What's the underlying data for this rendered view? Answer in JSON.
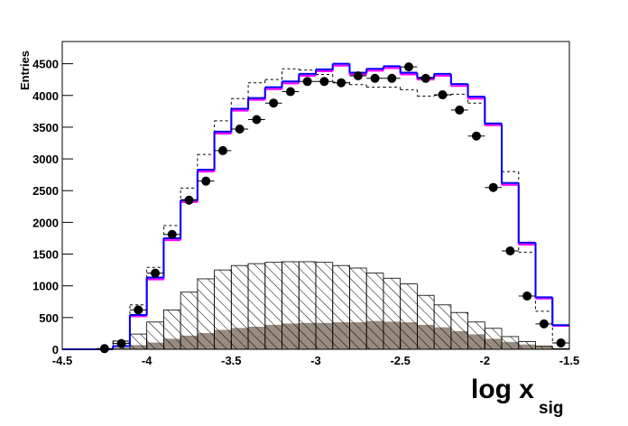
{
  "chart_data": {
    "type": "histogram",
    "x_label": "log x",
    "x_label_sub": "sig",
    "y_label": "Entries",
    "xlim": [
      -4.5,
      -1.5
    ],
    "ylim": [
      0,
      4850
    ],
    "xticks": [
      -4.5,
      -4,
      -3.5,
      -3,
      -2.5,
      -2,
      -1.5
    ],
    "yticks": [
      0,
      500,
      1000,
      1500,
      2000,
      2500,
      3000,
      3500,
      4000,
      4500
    ],
    "bins": [
      -4.5,
      -4.4,
      -4.3,
      -4.2,
      -4.1,
      -4.0,
      -3.9,
      -3.8,
      -3.7,
      -3.6,
      -3.5,
      -3.4,
      -3.3,
      -3.2,
      -3.1,
      -3.0,
      -2.9,
      -2.8,
      -2.7,
      -2.6,
      -2.5,
      -2.4,
      -2.3,
      -2.2,
      -2.1,
      -2.0,
      -1.9,
      -1.8,
      -1.7,
      -1.6,
      -1.5
    ],
    "series": [
      {
        "style": "filled",
        "color": "#998b80",
        "values": [
          0,
          0,
          0,
          20,
          60,
          100,
          160,
          210,
          250,
          300,
          330,
          350,
          380,
          400,
          410,
          410,
          420,
          420,
          440,
          430,
          420,
          380,
          340,
          280,
          230,
          160,
          110,
          70,
          40,
          10
        ]
      },
      {
        "style": "hatched",
        "color": "#000000",
        "values": [
          0,
          0,
          0,
          130,
          240,
          430,
          620,
          900,
          1110,
          1250,
          1320,
          1350,
          1370,
          1380,
          1380,
          1370,
          1320,
          1280,
          1200,
          1120,
          1030,
          850,
          700,
          580,
          430,
          330,
          200,
          120,
          50,
          10
        ]
      },
      {
        "style": "dashed",
        "color": "#000000",
        "values": [
          0,
          0,
          0,
          130,
          700,
          1290,
          1950,
          2540,
          3070,
          3600,
          3950,
          4200,
          4250,
          4420,
          4400,
          4330,
          4210,
          4170,
          4130,
          4130,
          4090,
          3990,
          4000,
          4020,
          3880,
          3530,
          2800,
          1530,
          600,
          100
        ]
      },
      {
        "style": "line",
        "color": "#ff00ff",
        "values": [
          0,
          0,
          0,
          50,
          520,
          1100,
          1720,
          2320,
          2800,
          3400,
          3760,
          3930,
          4100,
          4190,
          4310,
          4380,
          4470,
          4330,
          4390,
          4430,
          4330,
          4250,
          4310,
          4150,
          3950,
          3530,
          2590,
          1650,
          800,
          370
        ]
      },
      {
        "style": "line",
        "color": "#0000ff",
        "values": [
          0,
          0,
          0,
          50,
          540,
          1130,
          1750,
          2350,
          2830,
          3430,
          3790,
          3960,
          4130,
          4220,
          4340,
          4410,
          4500,
          4360,
          4420,
          4460,
          4360,
          4280,
          4340,
          4180,
          3980,
          3560,
          2620,
          1680,
          820,
          380
        ]
      }
    ],
    "points": {
      "color": "#000000",
      "x": [
        -4.25,
        -4.15,
        -4.05,
        -3.95,
        -3.85,
        -3.75,
        -3.65,
        -3.55,
        -3.45,
        -3.35,
        -3.25,
        -3.15,
        -3.05,
        -2.95,
        -2.85,
        -2.75,
        -2.65,
        -2.55,
        -2.45,
        -2.35,
        -2.25,
        -2.15,
        -2.05,
        -1.95,
        -1.85,
        -1.75,
        -1.65,
        -1.55
      ],
      "values": [
        10,
        90,
        620,
        1200,
        1810,
        2350,
        2650,
        3130,
        3470,
        3620,
        3880,
        4060,
        4220,
        4220,
        4200,
        4310,
        4270,
        4270,
        4450,
        4270,
        4010,
        3770,
        3360,
        2550,
        1550,
        840,
        400,
        100
      ]
    }
  }
}
